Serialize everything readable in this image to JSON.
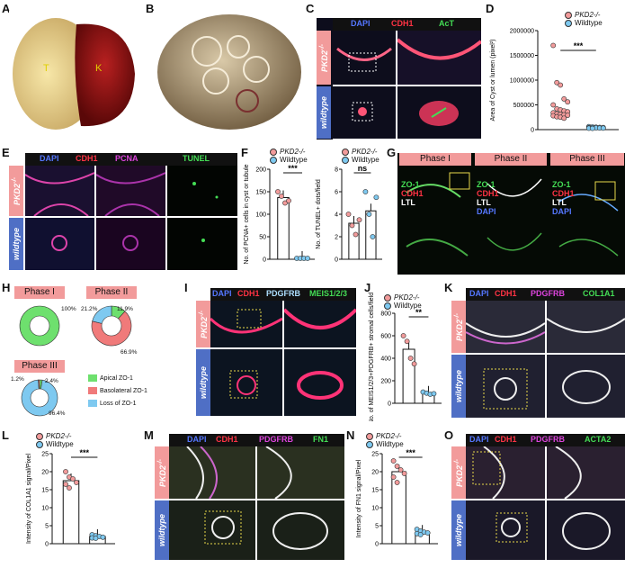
{
  "panels": {
    "A": {
      "letter": "A",
      "labels": [
        "T",
        "K"
      ]
    },
    "B": {
      "letter": "B"
    },
    "C": {
      "letter": "C",
      "stains": [
        "DAPI",
        "CDH1",
        "AcT"
      ],
      "genotype_top": "PKD2",
      "genotype_top_sup": "-/-",
      "genotype_bottom": "wildtype"
    },
    "D": {
      "letter": "D",
      "legend": [
        "PKD2-/-",
        "Wildtype"
      ],
      "ylabel": "Area of Cyst or lumen (pixel²)",
      "sig": "***"
    },
    "E": {
      "letter": "E",
      "stains": [
        "DAPI",
        "CDH1",
        "PCNA",
        "TUNEL"
      ],
      "genotype_top": "PKD2",
      "genotype_top_sup": "-/-",
      "genotype_bottom": "wildtype"
    },
    "F": {
      "letter": "F",
      "legend": [
        "PKD2-/-",
        "Wildtype"
      ],
      "ylabel1": "No. of PCNA+ cells in cyst or tubule",
      "ylabel2": "No. of TUNEL+ dots/field",
      "sig1": "***",
      "sig2": "ns"
    },
    "G": {
      "letter": "G",
      "phases": [
        "Phase I",
        "Phase II",
        "Phase III"
      ],
      "stains": [
        "ZO-1",
        "CDH1",
        "LTL",
        "DAPI"
      ]
    },
    "H": {
      "letter": "H",
      "phases": [
        "Phase I",
        "Phase II",
        "Phase III"
      ],
      "legend": [
        "Apical ZO-1",
        "Basolateral ZO-1",
        "Loss of ZO-1"
      ],
      "legend_colors": [
        "#6ee06e",
        "#f07a7a",
        "#7ec9f0"
      ],
      "phase1": [
        {
          "label": "100%",
          "value": 100
        }
      ],
      "phase2": [
        {
          "label": "11.9%",
          "value": 11.9
        },
        {
          "label": "66.9%",
          "value": 66.9
        },
        {
          "label": "21.2%",
          "value": 21.2
        }
      ],
      "phase3": [
        {
          "label": "2.4%",
          "value": 2.4
        },
        {
          "label": "96.4%",
          "value": 96.4
        },
        {
          "label": "1.2%",
          "value": 1.2
        }
      ]
    },
    "I": {
      "letter": "I",
      "stains": [
        "DAPI",
        "CDH1",
        "PDGFRB",
        "MEIS1/2/3"
      ],
      "genotype_top": "PKD2",
      "genotype_top_sup": "-/-",
      "genotype_bottom": "wildtype"
    },
    "J": {
      "letter": "J",
      "legend": [
        "PKD2-/-",
        "Wildtype"
      ],
      "ylabel": "No. of MEIS1/2/3+PDGFRB+ stromal cells/field",
      "sig": "**"
    },
    "K": {
      "letter": "K",
      "stains": [
        "DAPI",
        "CDH1",
        "PDGFRB",
        "COL1A1"
      ],
      "genotype_top": "PKD2",
      "genotype_top_sup": "-/-",
      "genotype_bottom": "wildtype"
    },
    "L": {
      "letter": "L",
      "legend": [
        "PKD2-/-",
        "Wildtype"
      ],
      "ylabel": "Intensity of COL1A1 signal/Pixel",
      "sig": "***"
    },
    "M": {
      "letter": "M",
      "stains": [
        "DAPI",
        "CDH1",
        "PDGFRB",
        "FN1"
      ],
      "genotype_top": "PKD2",
      "genotype_top_sup": "-/-",
      "genotype_bottom": "wildtype"
    },
    "N": {
      "letter": "N",
      "legend": [
        "PKD2-/-",
        "Wildtype"
      ],
      "ylabel": "Intensity of FN1 signal/Pixel",
      "sig": "***"
    },
    "O": {
      "letter": "O",
      "stains": [
        "DAPI",
        "CDH1",
        "PDGFRB",
        "ACTA2"
      ],
      "genotype_top": "PKD2",
      "genotype_top_sup": "-/-",
      "genotype_bottom": "wildtype"
    }
  },
  "colors": {
    "pkd": "#f29b9b",
    "wt": "#4f6fc5",
    "dapi": "#5577ff",
    "cdh1": "#ff3344",
    "green": "#44dd55",
    "magenta": "#dd44dd",
    "white": "#ffffff"
  },
  "chart_data": [
    {
      "id": "D",
      "type": "scatter",
      "categories": [
        "PKD2-/-",
        "Wildtype"
      ],
      "ylim": [
        0,
        2000000
      ],
      "yticks": [
        0,
        500000,
        1000000,
        1500000,
        2000000
      ],
      "series": [
        {
          "name": "PKD2-/-",
          "values": [
            1700000,
            950000,
            900000,
            620000,
            560000,
            500000,
            420000,
            400000,
            380000,
            360000,
            340000,
            320000,
            310000,
            300000,
            290000,
            280000,
            260000,
            250000,
            230000
          ]
        },
        {
          "name": "Wildtype",
          "values": [
            60000,
            55000,
            50000,
            45000,
            42000,
            40000,
            38000,
            35000,
            32000,
            30000,
            28000,
            25000
          ]
        }
      ]
    },
    {
      "id": "F1",
      "type": "bar",
      "categories": [
        "PKD2-/-",
        "Wildtype"
      ],
      "ylim": [
        0,
        200
      ],
      "yticks": [
        0,
        50,
        100,
        150,
        200
      ],
      "values": [
        137,
        2
      ],
      "points": [
        [
          150,
          140,
          125,
          130
        ],
        [
          2,
          2,
          2,
          2
        ]
      ]
    },
    {
      "id": "F2",
      "type": "bar",
      "categories": [
        "PKD2-/-",
        "Wildtype"
      ],
      "ylim": [
        0,
        8
      ],
      "yticks": [
        0,
        2,
        4,
        6,
        8
      ],
      "values": [
        3.2,
        4.3
      ],
      "points": [
        [
          4,
          3,
          2.2,
          3.5
        ],
        [
          6,
          4,
          2,
          5.5
        ]
      ]
    },
    {
      "id": "J",
      "type": "bar",
      "categories": [
        "PKD2-/-",
        "Wildtype"
      ],
      "ylim": [
        0,
        800
      ],
      "yticks": [
        0,
        200,
        400,
        600,
        800
      ],
      "values": [
        480,
        90
      ],
      "points": [
        [
          600,
          550,
          400,
          350
        ],
        [
          100,
          90,
          80,
          85
        ]
      ]
    },
    {
      "id": "L",
      "type": "bar",
      "categories": [
        "PKD2-/-",
        "Wildtype"
      ],
      "ylim": [
        0,
        25
      ],
      "yticks": [
        0,
        5,
        10,
        15,
        20,
        25
      ],
      "values": [
        17.5,
        2
      ],
      "points": [
        [
          20,
          18.5,
          18,
          17,
          16.5,
          15.5
        ],
        [
          2.5,
          2.2,
          2,
          1.8,
          1.6,
          1.5
        ]
      ]
    },
    {
      "id": "N",
      "type": "bar",
      "categories": [
        "PKD2-/-",
        "Wildtype"
      ],
      "ylim": [
        0,
        25
      ],
      "yticks": [
        0,
        5,
        10,
        15,
        20,
        25
      ],
      "values": [
        20,
        3.2
      ],
      "points": [
        [
          23,
          21.5,
          20.5,
          19.5,
          18.5,
          17
        ],
        [
          4,
          3.5,
          3.2,
          3,
          2.8,
          2.5
        ]
      ]
    }
  ]
}
